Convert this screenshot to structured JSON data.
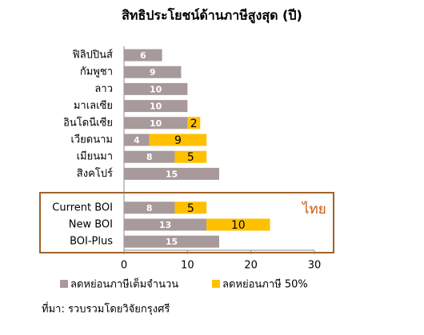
{
  "chart_data": {
    "type": "bar",
    "orientation": "horizontal",
    "stacked": true,
    "title": "สิทธิประโยชน์ด้านภาษีสูงสุด (ปี)",
    "categories": [
      "ฟิลิปปินส์",
      "กัมพูชา",
      "ลาว",
      "มาเลเซีย",
      "อินโดนีเซีย",
      "เวียดนาม",
      "เมียนมา",
      "สิงคโปร์",
      null,
      "Current BOI",
      "New BOI",
      "BOI-Plus"
    ],
    "series": [
      {
        "name": "ลดหย่อนภาษีเต็มจำนวน",
        "color": "#a89a9a",
        "values": [
          6,
          9,
          10,
          10,
          10,
          4,
          8,
          15,
          null,
          8,
          13,
          15
        ]
      },
      {
        "name": "ลดหย่อนภาษี 50%",
        "color": "#ffc000",
        "values": [
          null,
          null,
          null,
          null,
          2,
          9,
          5,
          null,
          null,
          5,
          10,
          null
        ]
      }
    ],
    "xlim": [
      0,
      30
    ],
    "xticks": [
      0,
      10,
      20,
      30
    ],
    "annotation": "ไทย",
    "annotation_color": "#c55a11",
    "legend": "bottom",
    "source": "ที่มา: รวบรวมโดยวิจัยกรุงศรี"
  }
}
